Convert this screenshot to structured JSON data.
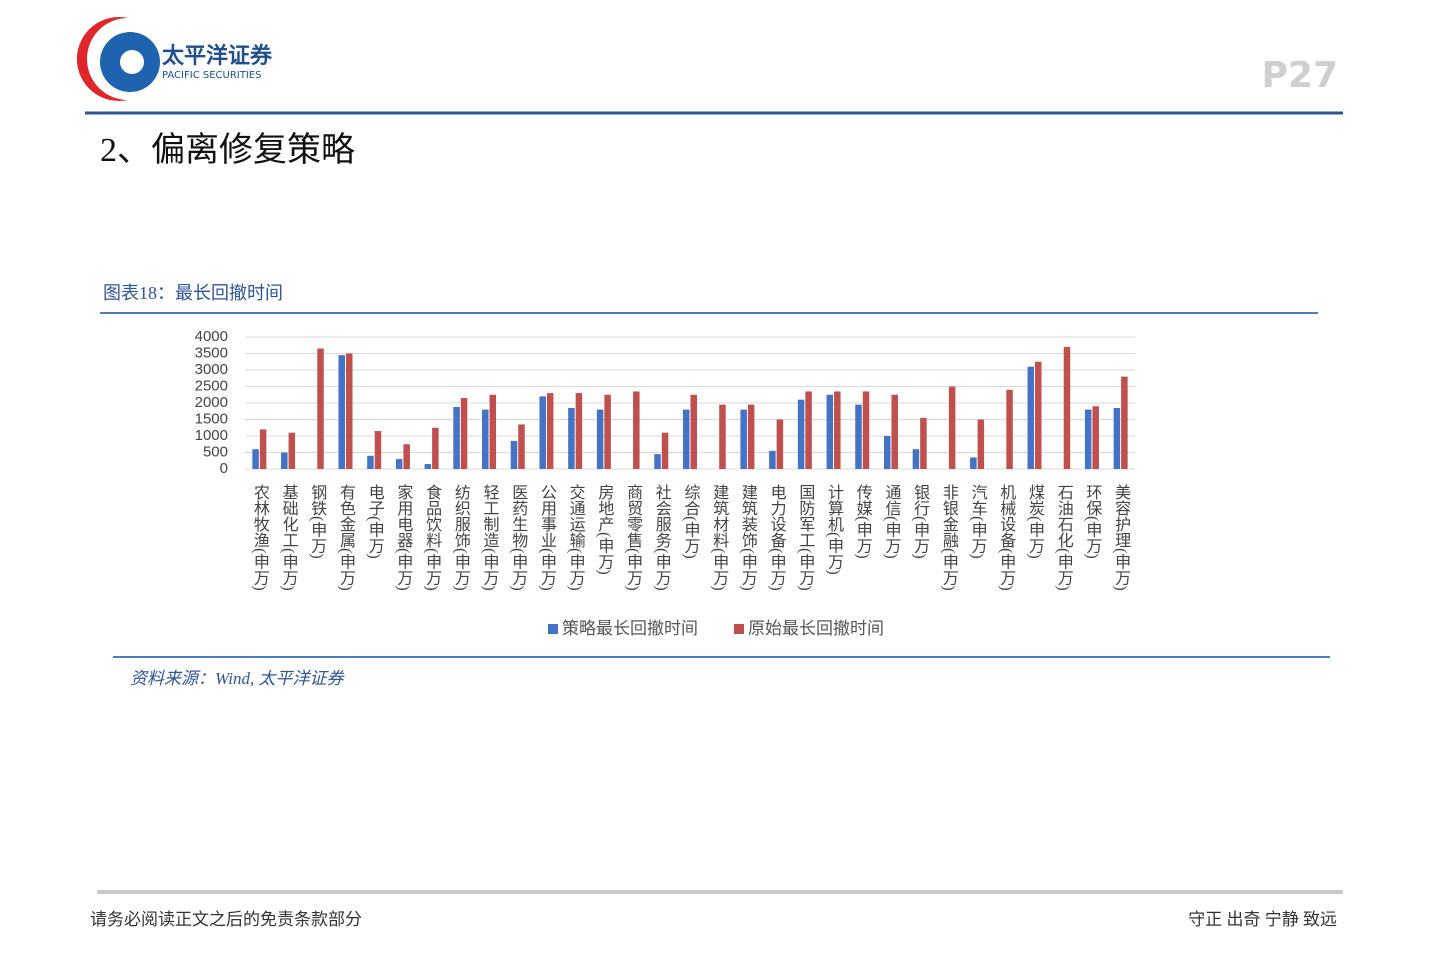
{
  "header": {
    "logo_cn": "太平洋证券",
    "logo_en": "PACIFIC SECURITIES",
    "page": "P27"
  },
  "title": "2、偏离修复策略",
  "chart_data": {
    "type": "bar",
    "title": "图表18：最长回撤时间",
    "categories": [
      "农林牧渔(申万)",
      "基础化工(申万)",
      "钢铁(申万)",
      "有色金属(申万)",
      "电子(申万)",
      "家用电器(申万)",
      "食品饮料(申万)",
      "纺织服饰(申万)",
      "轻工制造(申万)",
      "医药生物(申万)",
      "公用事业(申万)",
      "交通运输(申万)",
      "房地产(申万)",
      "商贸零售(申万)",
      "社会服务(申万)",
      "综合(申万)",
      "建筑材料(申万)",
      "建筑装饰(申万)",
      "电力设备(申万)",
      "国防军工(申万)",
      "计算机(申万)",
      "传媒(申万)",
      "通信(申万)",
      "银行(申万)",
      "非银金融(申万)",
      "汽车(申万)",
      "机械设备(申万)",
      "煤炭(申万)",
      "石油石化(申万)",
      "环保(申万)",
      "美容护理(申万)"
    ],
    "series": [
      {
        "name": "策略最长回撤时间",
        "color": "#4472c4",
        "values": [
          600,
          500,
          0,
          3450,
          400,
          300,
          150,
          1880,
          1800,
          850,
          2200,
          1850,
          1800,
          0,
          450,
          1800,
          0,
          1800,
          550,
          2100,
          2250,
          1950,
          1000,
          600,
          0,
          350,
          0,
          3100,
          0,
          1800,
          1850
        ]
      },
      {
        "name": "原始最长回撤时间",
        "color": "#c0504d",
        "values": [
          1200,
          1100,
          3650,
          3500,
          1150,
          750,
          1250,
          2150,
          2250,
          1350,
          2300,
          2300,
          2250,
          2350,
          1100,
          2250,
          1950,
          1950,
          1500,
          2350,
          2350,
          2350,
          2250,
          1550,
          2500,
          1500,
          2400,
          3250,
          3700,
          1900,
          2800
        ]
      }
    ],
    "ylim": [
      0,
      4000
    ],
    "yticks": [
      0,
      500,
      1000,
      1500,
      2000,
      2500,
      3000,
      3500,
      4000
    ],
    "grid": true,
    "legend": "bottom"
  },
  "source": "资料来源：Wind, 太平洋证券",
  "footer": {
    "left": "请务必阅读正文之后的免责条款部分",
    "right": "守正 出奇 宁静 致远"
  }
}
